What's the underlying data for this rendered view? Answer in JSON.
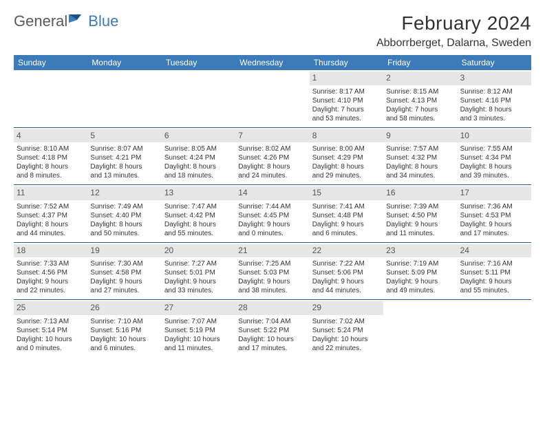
{
  "logo": {
    "general": "General",
    "blue": "Blue"
  },
  "title": "February 2024",
  "location": "Abborrberget, Dalarna, Sweden",
  "colors": {
    "header_bg": "#3d7bb8",
    "header_text": "#ffffff",
    "daynum_bg": "#e6e6e6",
    "text": "#333333",
    "row_border": "#2a5a8a"
  },
  "day_labels": [
    "Sunday",
    "Monday",
    "Tuesday",
    "Wednesday",
    "Thursday",
    "Friday",
    "Saturday"
  ],
  "weeks": [
    [
      null,
      null,
      null,
      null,
      {
        "n": "1",
        "sunrise": "8:17 AM",
        "sunset": "4:10 PM",
        "daylight1": "Daylight: 7 hours",
        "daylight2": "and 53 minutes."
      },
      {
        "n": "2",
        "sunrise": "8:15 AM",
        "sunset": "4:13 PM",
        "daylight1": "Daylight: 7 hours",
        "daylight2": "and 58 minutes."
      },
      {
        "n": "3",
        "sunrise": "8:12 AM",
        "sunset": "4:16 PM",
        "daylight1": "Daylight: 8 hours",
        "daylight2": "and 3 minutes."
      }
    ],
    [
      {
        "n": "4",
        "sunrise": "8:10 AM",
        "sunset": "4:18 PM",
        "daylight1": "Daylight: 8 hours",
        "daylight2": "and 8 minutes."
      },
      {
        "n": "5",
        "sunrise": "8:07 AM",
        "sunset": "4:21 PM",
        "daylight1": "Daylight: 8 hours",
        "daylight2": "and 13 minutes."
      },
      {
        "n": "6",
        "sunrise": "8:05 AM",
        "sunset": "4:24 PM",
        "daylight1": "Daylight: 8 hours",
        "daylight2": "and 18 minutes."
      },
      {
        "n": "7",
        "sunrise": "8:02 AM",
        "sunset": "4:26 PM",
        "daylight1": "Daylight: 8 hours",
        "daylight2": "and 24 minutes."
      },
      {
        "n": "8",
        "sunrise": "8:00 AM",
        "sunset": "4:29 PM",
        "daylight1": "Daylight: 8 hours",
        "daylight2": "and 29 minutes."
      },
      {
        "n": "9",
        "sunrise": "7:57 AM",
        "sunset": "4:32 PM",
        "daylight1": "Daylight: 8 hours",
        "daylight2": "and 34 minutes."
      },
      {
        "n": "10",
        "sunrise": "7:55 AM",
        "sunset": "4:34 PM",
        "daylight1": "Daylight: 8 hours",
        "daylight2": "and 39 minutes."
      }
    ],
    [
      {
        "n": "11",
        "sunrise": "7:52 AM",
        "sunset": "4:37 PM",
        "daylight1": "Daylight: 8 hours",
        "daylight2": "and 44 minutes."
      },
      {
        "n": "12",
        "sunrise": "7:49 AM",
        "sunset": "4:40 PM",
        "daylight1": "Daylight: 8 hours",
        "daylight2": "and 50 minutes."
      },
      {
        "n": "13",
        "sunrise": "7:47 AM",
        "sunset": "4:42 PM",
        "daylight1": "Daylight: 8 hours",
        "daylight2": "and 55 minutes."
      },
      {
        "n": "14",
        "sunrise": "7:44 AM",
        "sunset": "4:45 PM",
        "daylight1": "Daylight: 9 hours",
        "daylight2": "and 0 minutes."
      },
      {
        "n": "15",
        "sunrise": "7:41 AM",
        "sunset": "4:48 PM",
        "daylight1": "Daylight: 9 hours",
        "daylight2": "and 6 minutes."
      },
      {
        "n": "16",
        "sunrise": "7:39 AM",
        "sunset": "4:50 PM",
        "daylight1": "Daylight: 9 hours",
        "daylight2": "and 11 minutes."
      },
      {
        "n": "17",
        "sunrise": "7:36 AM",
        "sunset": "4:53 PM",
        "daylight1": "Daylight: 9 hours",
        "daylight2": "and 17 minutes."
      }
    ],
    [
      {
        "n": "18",
        "sunrise": "7:33 AM",
        "sunset": "4:56 PM",
        "daylight1": "Daylight: 9 hours",
        "daylight2": "and 22 minutes."
      },
      {
        "n": "19",
        "sunrise": "7:30 AM",
        "sunset": "4:58 PM",
        "daylight1": "Daylight: 9 hours",
        "daylight2": "and 27 minutes."
      },
      {
        "n": "20",
        "sunrise": "7:27 AM",
        "sunset": "5:01 PM",
        "daylight1": "Daylight: 9 hours",
        "daylight2": "and 33 minutes."
      },
      {
        "n": "21",
        "sunrise": "7:25 AM",
        "sunset": "5:03 PM",
        "daylight1": "Daylight: 9 hours",
        "daylight2": "and 38 minutes."
      },
      {
        "n": "22",
        "sunrise": "7:22 AM",
        "sunset": "5:06 PM",
        "daylight1": "Daylight: 9 hours",
        "daylight2": "and 44 minutes."
      },
      {
        "n": "23",
        "sunrise": "7:19 AM",
        "sunset": "5:09 PM",
        "daylight1": "Daylight: 9 hours",
        "daylight2": "and 49 minutes."
      },
      {
        "n": "24",
        "sunrise": "7:16 AM",
        "sunset": "5:11 PM",
        "daylight1": "Daylight: 9 hours",
        "daylight2": "and 55 minutes."
      }
    ],
    [
      {
        "n": "25",
        "sunrise": "7:13 AM",
        "sunset": "5:14 PM",
        "daylight1": "Daylight: 10 hours",
        "daylight2": "and 0 minutes."
      },
      {
        "n": "26",
        "sunrise": "7:10 AM",
        "sunset": "5:16 PM",
        "daylight1": "Daylight: 10 hours",
        "daylight2": "and 6 minutes."
      },
      {
        "n": "27",
        "sunrise": "7:07 AM",
        "sunset": "5:19 PM",
        "daylight1": "Daylight: 10 hours",
        "daylight2": "and 11 minutes."
      },
      {
        "n": "28",
        "sunrise": "7:04 AM",
        "sunset": "5:22 PM",
        "daylight1": "Daylight: 10 hours",
        "daylight2": "and 17 minutes."
      },
      {
        "n": "29",
        "sunrise": "7:02 AM",
        "sunset": "5:24 PM",
        "daylight1": "Daylight: 10 hours",
        "daylight2": "and 22 minutes."
      },
      null,
      null
    ]
  ],
  "labels": {
    "sunrise": "Sunrise:",
    "sunset": "Sunset:"
  }
}
